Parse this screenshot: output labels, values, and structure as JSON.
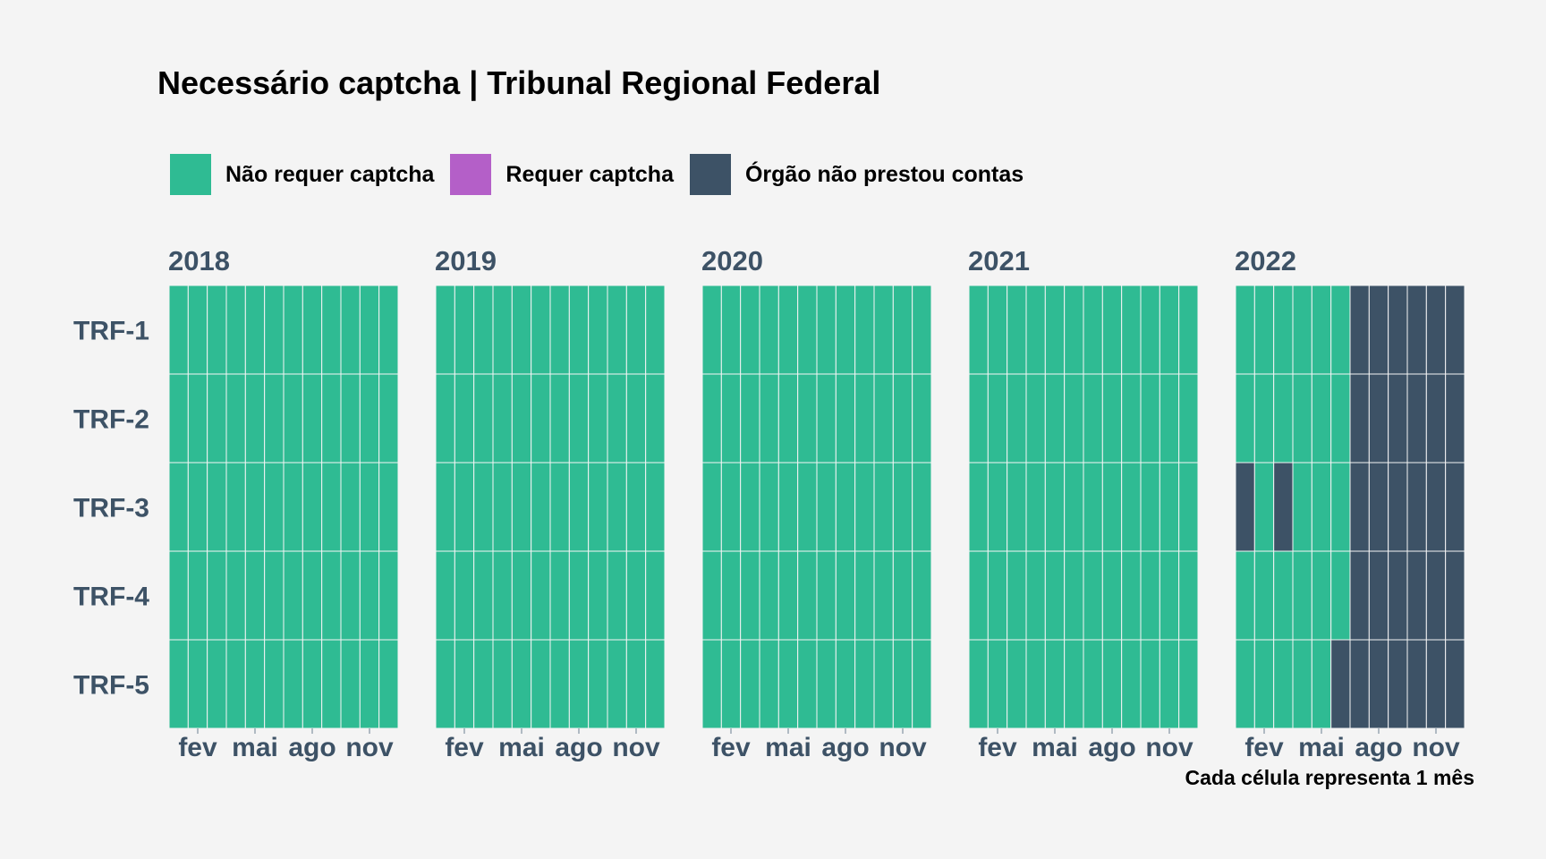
{
  "chart_data": {
    "type": "heatmap",
    "title": "Necessário captcha | Tribunal Regional Federal",
    "caption": "Cada célula representa 1 mês",
    "legend": {
      "placement": "top",
      "items": [
        {
          "key": "nao",
          "label": "Não requer captcha",
          "color": "#2fbb93"
        },
        {
          "key": "req",
          "label": "Requer captcha",
          "color": "#b45fc8"
        },
        {
          "key": "na",
          "label": "Órgão não prestou contas",
          "color": "#3d5266"
        }
      ]
    },
    "rows": [
      "TRF-1",
      "TRF-2",
      "TRF-3",
      "TRF-4",
      "TRF-5"
    ],
    "x_tick_labels": [
      {
        "month": 2,
        "label": "fev"
      },
      {
        "month": 5,
        "label": "mai"
      },
      {
        "month": 8,
        "label": "ago"
      },
      {
        "month": 11,
        "label": "nov"
      }
    ],
    "panels": [
      {
        "year": "2018",
        "values": {
          "TRF-1": [
            "nao",
            "nao",
            "nao",
            "nao",
            "nao",
            "nao",
            "nao",
            "nao",
            "nao",
            "nao",
            "nao",
            "nao"
          ],
          "TRF-2": [
            "nao",
            "nao",
            "nao",
            "nao",
            "nao",
            "nao",
            "nao",
            "nao",
            "nao",
            "nao",
            "nao",
            "nao"
          ],
          "TRF-3": [
            "nao",
            "nao",
            "nao",
            "nao",
            "nao",
            "nao",
            "nao",
            "nao",
            "nao",
            "nao",
            "nao",
            "nao"
          ],
          "TRF-4": [
            "nao",
            "nao",
            "nao",
            "nao",
            "nao",
            "nao",
            "nao",
            "nao",
            "nao",
            "nao",
            "nao",
            "nao"
          ],
          "TRF-5": [
            "nao",
            "nao",
            "nao",
            "nao",
            "nao",
            "nao",
            "nao",
            "nao",
            "nao",
            "nao",
            "nao",
            "nao"
          ]
        }
      },
      {
        "year": "2019",
        "values": {
          "TRF-1": [
            "nao",
            "nao",
            "nao",
            "nao",
            "nao",
            "nao",
            "nao",
            "nao",
            "nao",
            "nao",
            "nao",
            "nao"
          ],
          "TRF-2": [
            "nao",
            "nao",
            "nao",
            "nao",
            "nao",
            "nao",
            "nao",
            "nao",
            "nao",
            "nao",
            "nao",
            "nao"
          ],
          "TRF-3": [
            "nao",
            "nao",
            "nao",
            "nao",
            "nao",
            "nao",
            "nao",
            "nao",
            "nao",
            "nao",
            "nao",
            "nao"
          ],
          "TRF-4": [
            "nao",
            "nao",
            "nao",
            "nao",
            "nao",
            "nao",
            "nao",
            "nao",
            "nao",
            "nao",
            "nao",
            "nao"
          ],
          "TRF-5": [
            "nao",
            "nao",
            "nao",
            "nao",
            "nao",
            "nao",
            "nao",
            "nao",
            "nao",
            "nao",
            "nao",
            "nao"
          ]
        }
      },
      {
        "year": "2020",
        "values": {
          "TRF-1": [
            "nao",
            "nao",
            "nao",
            "nao",
            "nao",
            "nao",
            "nao",
            "nao",
            "nao",
            "nao",
            "nao",
            "nao"
          ],
          "TRF-2": [
            "nao",
            "nao",
            "nao",
            "nao",
            "nao",
            "nao",
            "nao",
            "nao",
            "nao",
            "nao",
            "nao",
            "nao"
          ],
          "TRF-3": [
            "nao",
            "nao",
            "nao",
            "nao",
            "nao",
            "nao",
            "nao",
            "nao",
            "nao",
            "nao",
            "nao",
            "nao"
          ],
          "TRF-4": [
            "nao",
            "nao",
            "nao",
            "nao",
            "nao",
            "nao",
            "nao",
            "nao",
            "nao",
            "nao",
            "nao",
            "nao"
          ],
          "TRF-5": [
            "nao",
            "nao",
            "nao",
            "nao",
            "nao",
            "nao",
            "nao",
            "nao",
            "nao",
            "nao",
            "nao",
            "nao"
          ]
        }
      },
      {
        "year": "2021",
        "values": {
          "TRF-1": [
            "nao",
            "nao",
            "nao",
            "nao",
            "nao",
            "nao",
            "nao",
            "nao",
            "nao",
            "nao",
            "nao",
            "nao"
          ],
          "TRF-2": [
            "nao",
            "nao",
            "nao",
            "nao",
            "nao",
            "nao",
            "nao",
            "nao",
            "nao",
            "nao",
            "nao",
            "nao"
          ],
          "TRF-3": [
            "nao",
            "nao",
            "nao",
            "nao",
            "nao",
            "nao",
            "nao",
            "nao",
            "nao",
            "nao",
            "nao",
            "nao"
          ],
          "TRF-4": [
            "nao",
            "nao",
            "nao",
            "nao",
            "nao",
            "nao",
            "nao",
            "nao",
            "nao",
            "nao",
            "nao",
            "nao"
          ],
          "TRF-5": [
            "nao",
            "nao",
            "nao",
            "nao",
            "nao",
            "nao",
            "nao",
            "nao",
            "nao",
            "nao",
            "nao",
            "nao"
          ]
        }
      },
      {
        "year": "2022",
        "values": {
          "TRF-1": [
            "nao",
            "nao",
            "nao",
            "nao",
            "nao",
            "nao",
            "na",
            "na",
            "na",
            "na",
            "na",
            "na"
          ],
          "TRF-2": [
            "nao",
            "nao",
            "nao",
            "nao",
            "nao",
            "nao",
            "na",
            "na",
            "na",
            "na",
            "na",
            "na"
          ],
          "TRF-3": [
            "na",
            "nao",
            "na",
            "nao",
            "nao",
            "nao",
            "na",
            "na",
            "na",
            "na",
            "na",
            "na"
          ],
          "TRF-4": [
            "nao",
            "nao",
            "nao",
            "nao",
            "nao",
            "nao",
            "na",
            "na",
            "na",
            "na",
            "na",
            "na"
          ],
          "TRF-5": [
            "nao",
            "nao",
            "nao",
            "nao",
            "nao",
            "na",
            "na",
            "na",
            "na",
            "na",
            "na",
            "na"
          ]
        }
      }
    ]
  },
  "style": {
    "background": "#f4f4f4",
    "axis_text_color": "#3d5266",
    "cell_border_color": "#f4f4f4"
  }
}
